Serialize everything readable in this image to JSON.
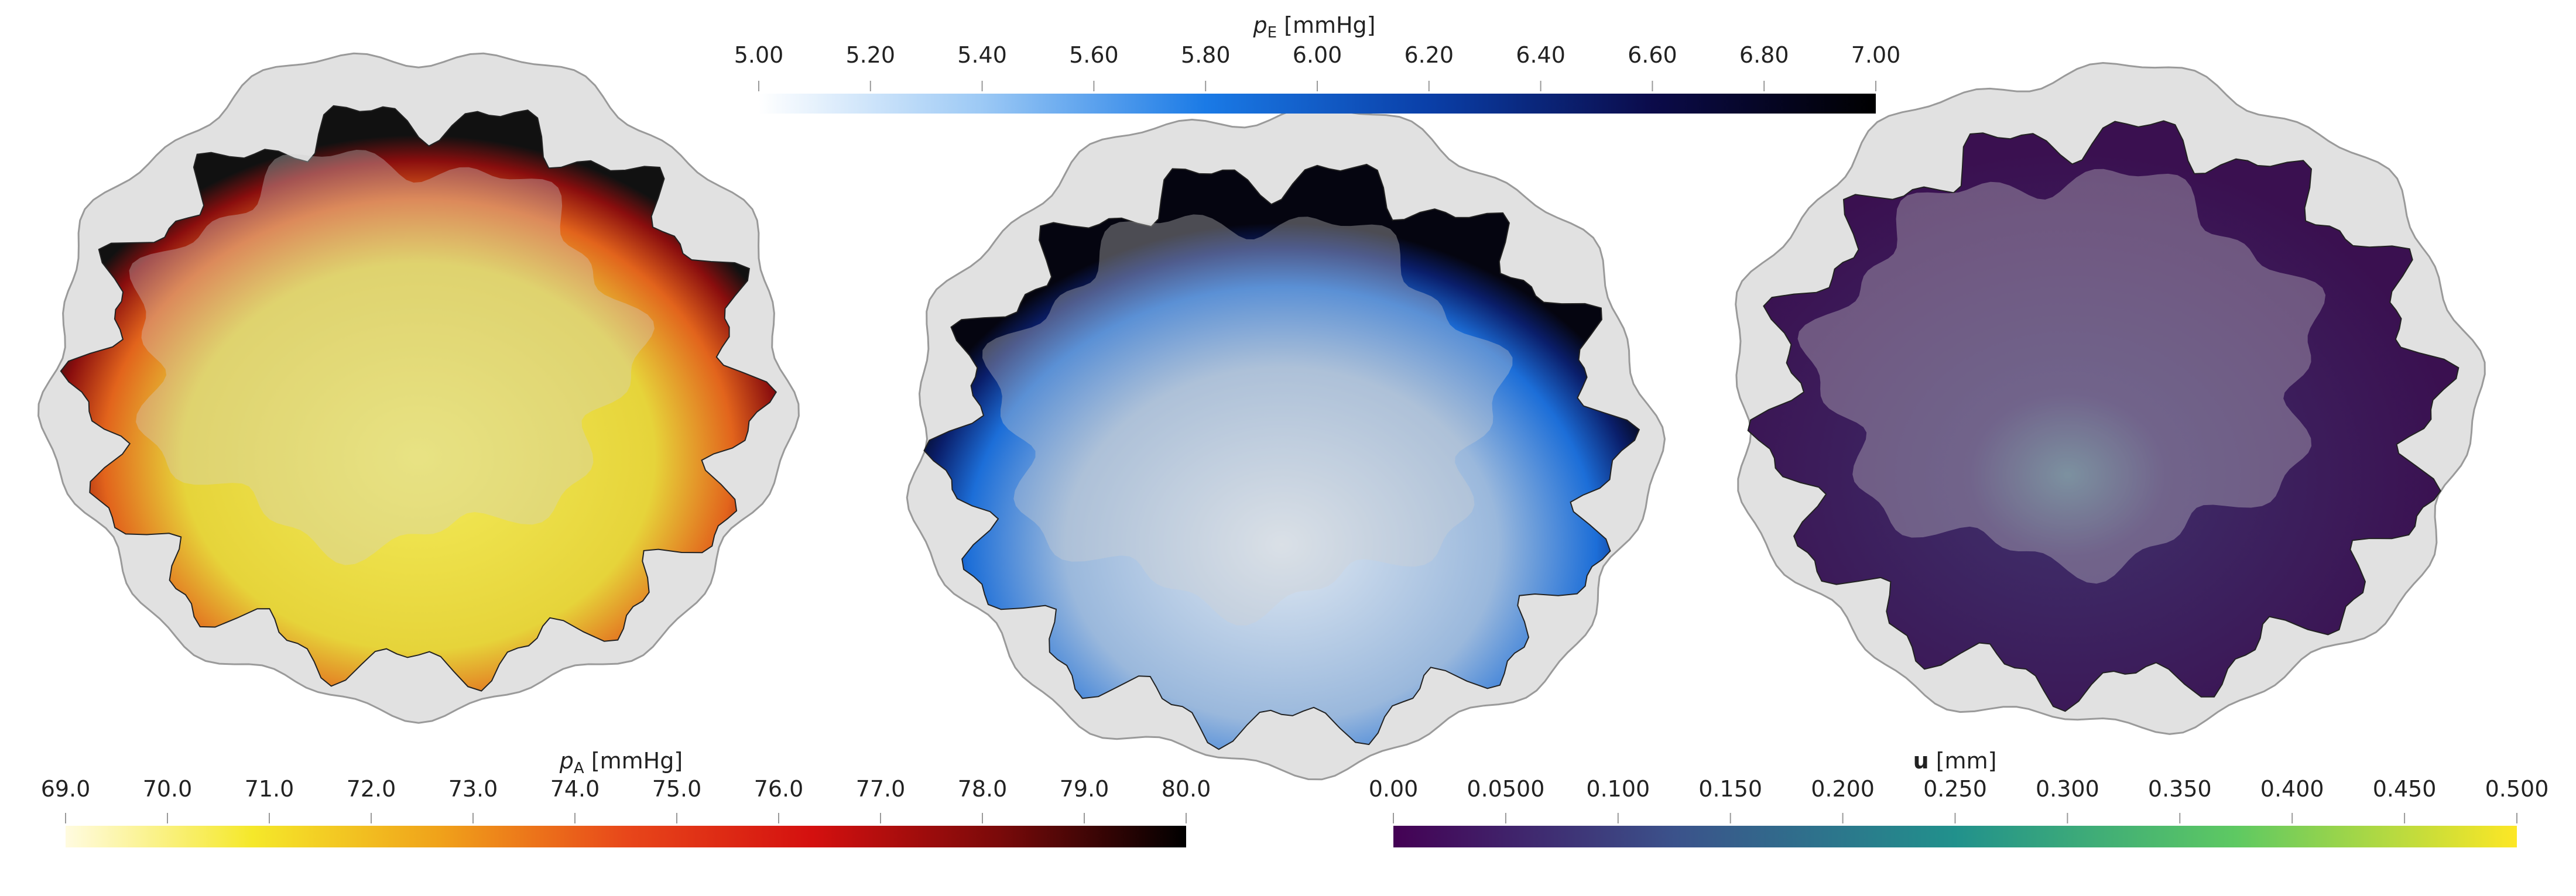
{
  "colorbars": [
    {
      "symbol": "p",
      "subscript": "E",
      "unit": "[mmHg]",
      "range": [
        5,
        7
      ],
      "colors": [
        "#ffffff",
        "#9cc9f5",
        "#1a7ae6",
        "#0a3fa8",
        "#0b0b4a",
        "#000000"
      ],
      "ticks": [
        {
          "value": 5,
          "label": "5.00"
        },
        {
          "value": 5.2,
          "label": "5.20"
        },
        {
          "value": 5.4,
          "label": "5.40"
        },
        {
          "value": 5.6,
          "label": "5.60"
        },
        {
          "value": 5.8,
          "label": "5.80"
        },
        {
          "value": 6,
          "label": "6.00"
        },
        {
          "value": 6.2,
          "label": "6.20"
        },
        {
          "value": 6.4,
          "label": "6.40"
        },
        {
          "value": 6.6,
          "label": "6.60"
        },
        {
          "value": 6.8,
          "label": "6.80"
        },
        {
          "value": 7,
          "label": "7.00"
        }
      ]
    },
    {
      "symbol": "p",
      "subscript": "A",
      "unit": "[mmHg]",
      "range": [
        69,
        80
      ],
      "colors": [
        "#fffbe0",
        "#f5e82a",
        "#f0a21a",
        "#e8471a",
        "#d4100f",
        "#7a0a0a",
        "#000000"
      ],
      "ticks": [
        {
          "value": 69,
          "label": "69.0"
        },
        {
          "value": 70,
          "label": "70.0"
        },
        {
          "value": 71,
          "label": "71.0"
        },
        {
          "value": 72,
          "label": "72.0"
        },
        {
          "value": 73,
          "label": "73.0"
        },
        {
          "value": 74,
          "label": "74.0"
        },
        {
          "value": 75,
          "label": "75.0"
        },
        {
          "value": 76,
          "label": "76.0"
        },
        {
          "value": 77,
          "label": "77.0"
        },
        {
          "value": 78,
          "label": "78.0"
        },
        {
          "value": 79,
          "label": "79.0"
        },
        {
          "value": 80,
          "label": "80.0"
        }
      ]
    },
    {
      "symbol": "u",
      "unit": "[mm]",
      "range": [
        0,
        0.5
      ],
      "colors": [
        "#440154",
        "#3b528b",
        "#21918c",
        "#5ec962",
        "#fde725"
      ],
      "ticks": [
        {
          "value": 0,
          "label": "0.00"
        },
        {
          "value": 0.05,
          "label": "0.0500"
        },
        {
          "value": 0.1,
          "label": "0.100"
        },
        {
          "value": 0.15,
          "label": "0.150"
        },
        {
          "value": 0.2,
          "label": "0.200"
        },
        {
          "value": 0.25,
          "label": "0.250"
        },
        {
          "value": 0.3,
          "label": "0.300"
        },
        {
          "value": 0.35,
          "label": "0.350"
        },
        {
          "value": 0.4,
          "label": "0.400"
        },
        {
          "value": 0.45,
          "label": "0.450"
        },
        {
          "value": 0.5,
          "label": "0.500"
        }
      ]
    }
  ]
}
